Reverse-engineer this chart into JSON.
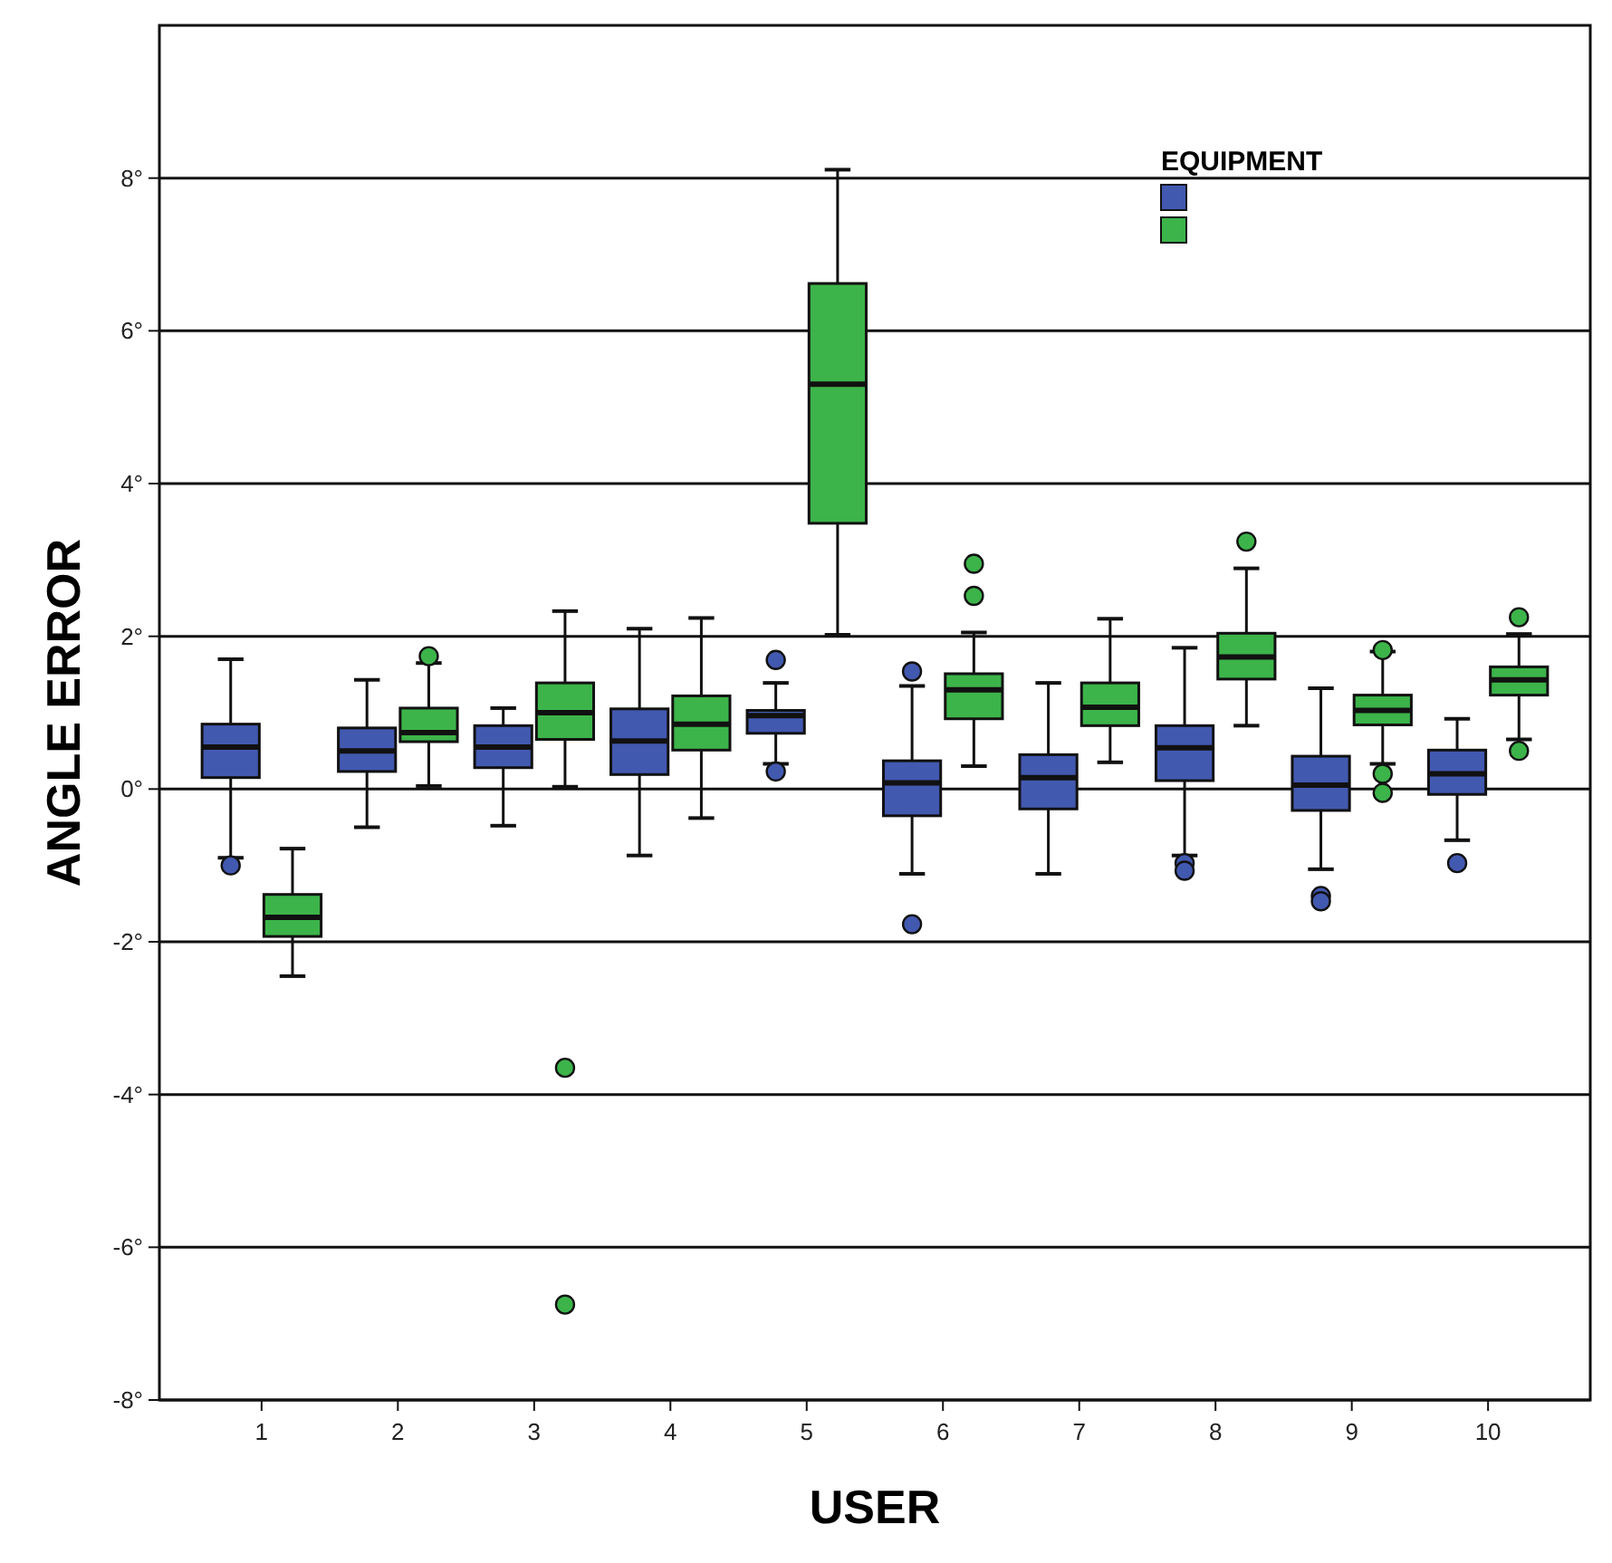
{
  "chart_data": {
    "type": "box",
    "xlabel": "USER",
    "ylabel": "ANGLE ERROR",
    "legend_title": "EQUIPMENT",
    "grid": "y",
    "categories": [
      "1",
      "2",
      "3",
      "4",
      "5",
      "6",
      "7",
      "8",
      "9",
      "10"
    ],
    "ylim": [
      -8,
      10
    ],
    "yticks": [
      {
        "value": -8,
        "label": "-8°"
      },
      {
        "value": -6,
        "label": "-6°"
      },
      {
        "value": -4,
        "label": "-4°"
      },
      {
        "value": -2,
        "label": "-2°"
      },
      {
        "value": 0,
        "label": "0°"
      },
      {
        "value": 2,
        "label": "2°"
      },
      {
        "value": 4,
        "label": "4°"
      },
      {
        "value": 6,
        "label": "6°"
      },
      {
        "value": 8,
        "label": "8°"
      }
    ],
    "series": [
      {
        "color": "#4259b0",
        "boxes": [
          {
            "low": -0.9,
            "q1": 0.15,
            "median": 0.55,
            "q3": 0.85,
            "high": 1.7,
            "outliers": [
              -1.0
            ]
          },
          {
            "low": -0.5,
            "q1": 0.23,
            "median": 0.5,
            "q3": 0.8,
            "high": 1.43
          },
          {
            "low": -0.48,
            "q1": 0.28,
            "median": 0.55,
            "q3": 0.83,
            "high": 1.06
          },
          {
            "low": -0.87,
            "q1": 0.19,
            "median": 0.63,
            "q3": 1.05,
            "high": 2.1
          },
          {
            "low": 0.33,
            "q1": 0.73,
            "median": 0.96,
            "q3": 1.03,
            "high": 1.39,
            "outliers": [
              1.69,
              0.23
            ]
          },
          {
            "low": -1.11,
            "q1": -0.35,
            "median": 0.08,
            "q3": 0.37,
            "high": 1.35,
            "outliers": [
              1.54,
              -1.77
            ]
          },
          {
            "low": -1.11,
            "q1": -0.26,
            "median": 0.15,
            "q3": 0.45,
            "high": 1.39
          },
          {
            "low": -0.87,
            "q1": 0.11,
            "median": 0.54,
            "q3": 0.83,
            "high": 1.85,
            "outliers": [
              -0.97,
              -1.07
            ]
          },
          {
            "low": -1.05,
            "q1": -0.28,
            "median": 0.05,
            "q3": 0.43,
            "high": 1.32,
            "outliers": [
              -1.4,
              -1.47
            ]
          },
          {
            "low": -0.67,
            "q1": -0.07,
            "median": 0.2,
            "q3": 0.51,
            "high": 0.92,
            "outliers": [
              -0.97
            ]
          }
        ]
      },
      {
        "color": "#3cb44a",
        "boxes": [
          {
            "low": -2.45,
            "q1": -1.93,
            "median": -1.68,
            "q3": -1.38,
            "high": -0.78
          },
          {
            "low": 0.04,
            "q1": 0.62,
            "median": 0.74,
            "q3": 1.06,
            "high": 1.65,
            "outliers": [
              1.74
            ]
          },
          {
            "low": 0.03,
            "q1": 0.65,
            "median": 1.0,
            "q3": 1.39,
            "high": 2.33,
            "outliers": [
              -3.65,
              -6.75
            ]
          },
          {
            "low": -0.38,
            "q1": 0.51,
            "median": 0.85,
            "q3": 1.22,
            "high": 2.24
          },
          {
            "low": 2.02,
            "q1": 3.48,
            "median": 5.3,
            "q3": 6.62,
            "high": 8.11
          },
          {
            "low": 0.3,
            "q1": 0.92,
            "median": 1.3,
            "q3": 1.51,
            "high": 2.05,
            "outliers": [
              2.95,
              2.53
            ]
          },
          {
            "low": 0.35,
            "q1": 0.83,
            "median": 1.07,
            "q3": 1.39,
            "high": 2.23
          },
          {
            "low": 0.83,
            "q1": 1.44,
            "median": 1.73,
            "q3": 2.04,
            "high": 2.89,
            "outliers": [
              3.24
            ]
          },
          {
            "low": 0.33,
            "q1": 0.84,
            "median": 1.03,
            "q3": 1.23,
            "high": 1.8,
            "outliers": [
              1.82,
              0.2,
              -0.05
            ]
          },
          {
            "low": 0.65,
            "q1": 1.23,
            "median": 1.43,
            "q3": 1.6,
            "high": 2.03,
            "outliers": [
              2.25,
              0.5
            ]
          }
        ]
      }
    ]
  }
}
